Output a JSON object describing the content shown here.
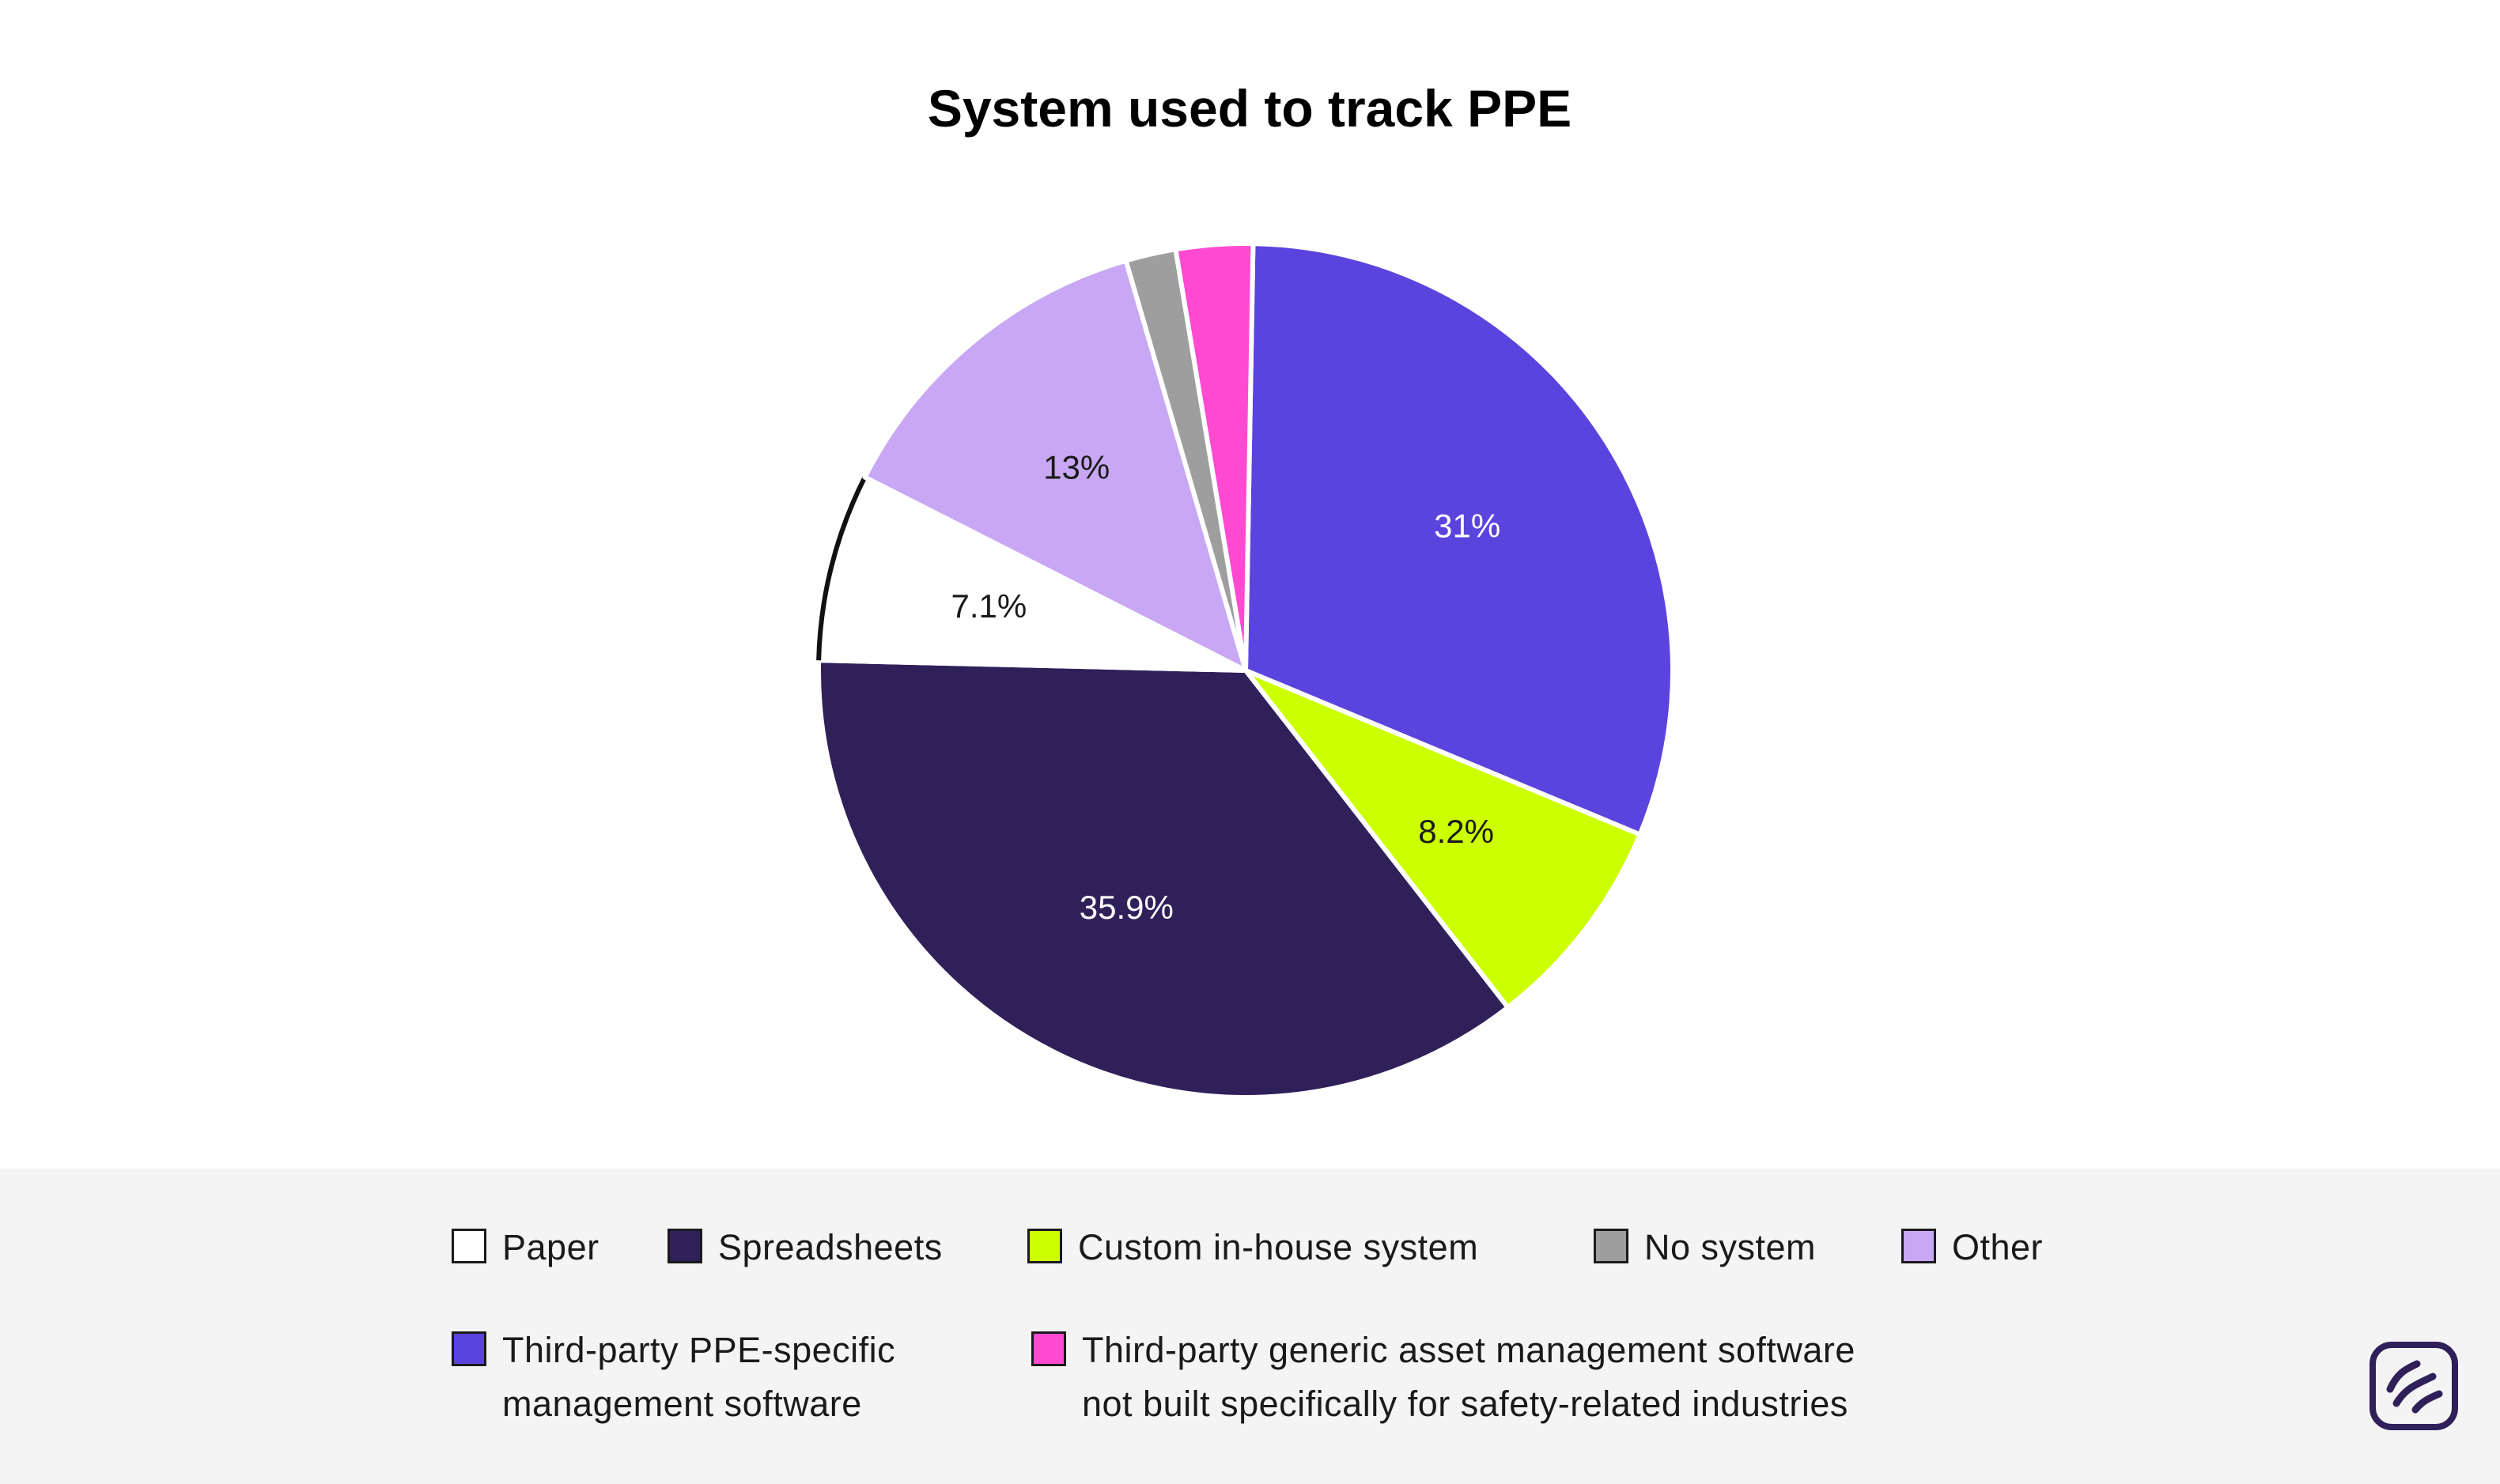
{
  "chart_data": {
    "type": "pie",
    "title": "System used to track PPE",
    "start_angle_deg": 1,
    "slices": [
      {
        "label": "Third-party PPE-specific management software",
        "value": 31,
        "display": "31%",
        "color": "#5b44dd",
        "label_color": "#ffffff"
      },
      {
        "label": "Custom in-house system",
        "value": 8.2,
        "display": "8.2%",
        "color": "#ccff00",
        "label_color": "#1a1a1a"
      },
      {
        "label": "Spreadsheets",
        "value": 35.9,
        "display": "35.9%",
        "color": "#30205a",
        "label_color": "#ffffff"
      },
      {
        "label": "Paper",
        "value": 7.1,
        "display": "7.1%",
        "color": "#ffffff",
        "label_color": "#1a1a1a",
        "outlined": true
      },
      {
        "label": "Other",
        "value": 13,
        "display": "13%",
        "color": "#c8a8f4",
        "label_color": "#1a1a1a"
      },
      {
        "label": "No system",
        "value": 1.9,
        "display": "",
        "color": "#9e9e9e",
        "label_color": "#1a1a1a"
      },
      {
        "label": "Third-party generic asset management software not built specifically for safety-related industries",
        "value": 2.9,
        "display": "",
        "color": "#ff4ad1",
        "label_color": "#1a1a1a"
      }
    ]
  },
  "legend": [
    {
      "text": "Paper",
      "color": "#ffffff"
    },
    {
      "text": "Spreadsheets",
      "color": "#30205a"
    },
    {
      "text": "Custom in-house system",
      "color": "#ccff00"
    },
    {
      "text": "No system",
      "color": "#9e9e9e"
    },
    {
      "text": "Other",
      "color": "#c8a8f4"
    },
    {
      "text": "Third-party PPE-specific\nmanagement software",
      "color": "#5b44dd"
    },
    {
      "text": "Third-party generic asset management software\nnot built specifically for safety-related industries",
      "color": "#ff4ad1"
    }
  ],
  "logo": {
    "icon": "brand-waves-icon",
    "color": "#30205a"
  }
}
